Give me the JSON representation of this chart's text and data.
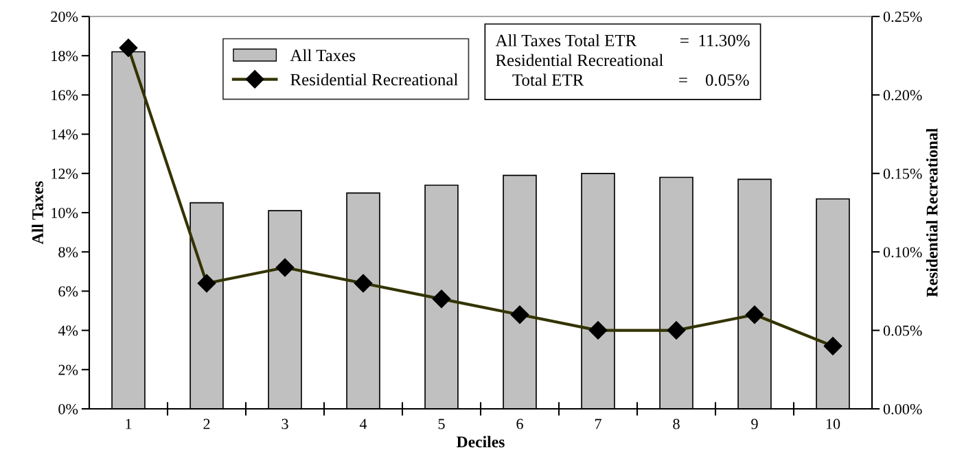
{
  "chart_data": {
    "type": "bar",
    "xlabel": "Deciles",
    "ylabel": "All Taxes",
    "y2label": "Residential Recreational",
    "categories": [
      "1",
      "2",
      "3",
      "4",
      "5",
      "6",
      "7",
      "8",
      "9",
      "10"
    ],
    "series": [
      {
        "name": "All Taxes",
        "color": "#c0c0c0",
        "values": [
          18.2,
          10.5,
          10.1,
          11.0,
          11.4,
          11.9,
          12.0,
          11.8,
          11.7,
          10.7
        ]
      },
      {
        "name": "Residential Recreational",
        "type": "line",
        "axis": "y2",
        "color": "#333300",
        "marker": "diamond",
        "values": [
          0.23,
          0.08,
          0.09,
          0.08,
          0.07,
          0.06,
          0.05,
          0.05,
          0.06,
          0.04
        ]
      }
    ],
    "ylim": [
      0,
      20
    ],
    "yticks": [
      {
        "value": 0,
        "label": "0%"
      },
      {
        "value": 2,
        "label": "2%"
      },
      {
        "value": 4,
        "label": "4%"
      },
      {
        "value": 6,
        "label": "6%"
      },
      {
        "value": 8,
        "label": "8%"
      },
      {
        "value": 10,
        "label": "10%"
      },
      {
        "value": 12,
        "label": "12%"
      },
      {
        "value": 14,
        "label": "14%"
      },
      {
        "value": 16,
        "label": "16%"
      },
      {
        "value": 18,
        "label": "18%"
      },
      {
        "value": 20,
        "label": "20%"
      }
    ],
    "y2lim": [
      0,
      0.25
    ],
    "y2ticks": [
      {
        "value": 0,
        "label": "0.00%"
      },
      {
        "value": 0.05,
        "label": "0.05%"
      },
      {
        "value": 0.1,
        "label": "0.10%"
      },
      {
        "value": 0.15,
        "label": "0.15%"
      },
      {
        "value": 0.2,
        "label": "0.20%"
      },
      {
        "value": 0.25,
        "label": "0.25%"
      }
    ],
    "annotations": [
      "All Taxes Total ETR          =  11.30%\nResidential Recreational\n    Total ETR                      =    0.05%"
    ],
    "legend": "top",
    "grid": false
  }
}
